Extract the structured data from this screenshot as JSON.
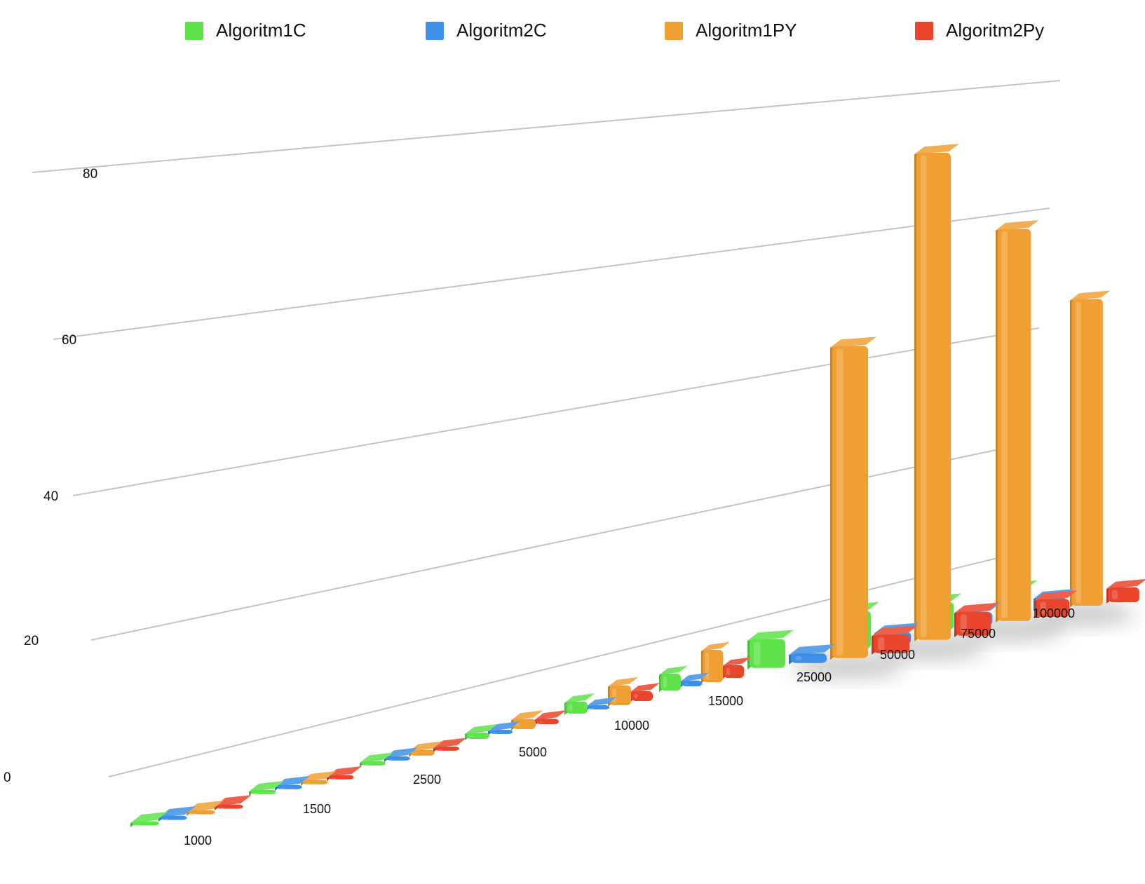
{
  "chart_data": {
    "type": "bar",
    "style": "3d",
    "legend_position": "top",
    "grid": true,
    "ylim": [
      0,
      100
    ],
    "yticks": [
      0,
      20,
      40,
      60,
      80
    ],
    "categories": [
      "1000",
      "1500",
      "2500",
      "5000",
      "10000",
      "15000",
      "25000",
      "50000",
      "75000",
      "100000"
    ],
    "series": [
      {
        "name": "Algoritm1C",
        "color": "#5ee34a",
        "values": [
          0.1,
          0.2,
          0.4,
          0.9,
          1.8,
          2.6,
          4.5,
          6.0,
          4.5,
          4.0
        ]
      },
      {
        "name": "Algoritm2C",
        "color": "#3d8fe8",
        "values": [
          0.1,
          0.1,
          0.2,
          0.3,
          0.6,
          0.9,
          1.5,
          2.0,
          2.2,
          2.0
        ]
      },
      {
        "name": "Algoritm1PY",
        "color": "#f0a033",
        "values": [
          0.2,
          0.4,
          0.8,
          1.5,
          3.0,
          5.0,
          50.0,
          80.0,
          66.0,
          52.0
        ]
      },
      {
        "name": "Algoritm2Py",
        "color": "#e8452c",
        "values": [
          0.1,
          0.2,
          0.4,
          0.8,
          1.5,
          2.0,
          3.0,
          4.0,
          3.0,
          2.5
        ]
      }
    ]
  }
}
